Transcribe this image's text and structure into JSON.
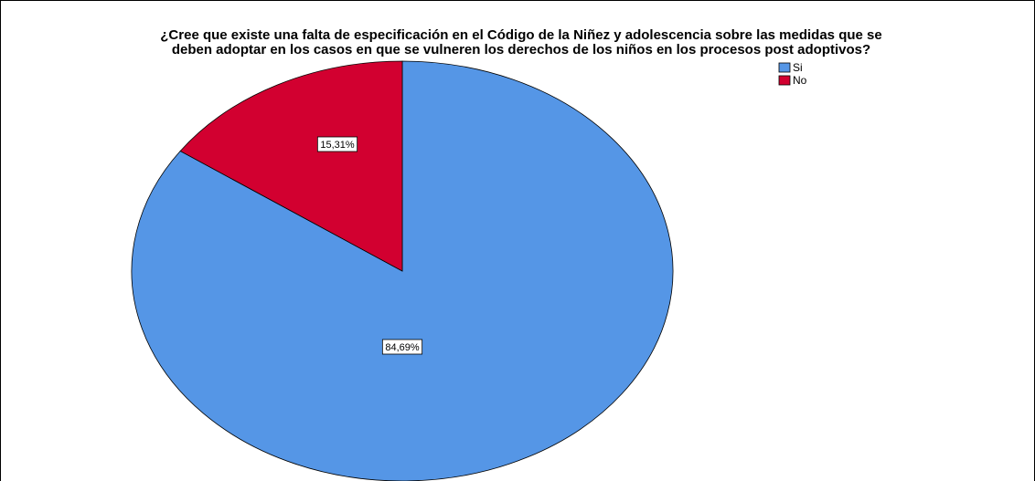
{
  "chart_data": {
    "type": "pie",
    "title": [
      "¿Cree que existe una falta de especificación en el Código de la Niñez y adolescencia sobre las medidas que se",
      "deben adoptar en los casos en que se vulneren los derechos de los niños en los procesos post adoptivos?"
    ],
    "categories": [
      "Si",
      "No"
    ],
    "values": [
      84.69,
      15.31
    ],
    "value_labels": [
      "84,69%",
      "15,31%"
    ],
    "colors": [
      "#5596e6",
      "#d20030"
    ],
    "legend": "top-right"
  }
}
